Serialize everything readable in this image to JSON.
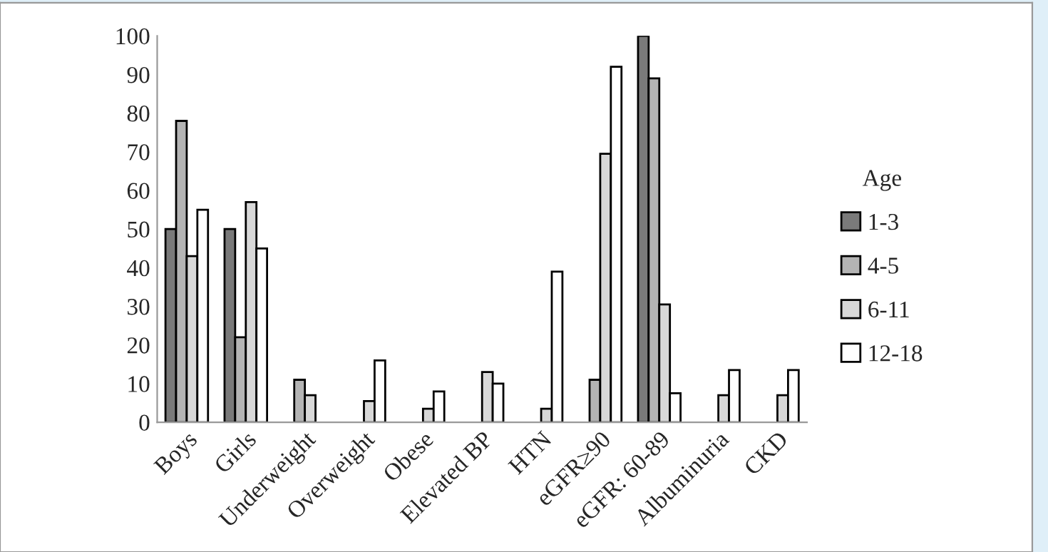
{
  "chart_data": {
    "type": "bar",
    "legend_title": "Age",
    "categories": [
      "Boys",
      "Girls",
      "Underweight",
      "Overweight",
      "Obese",
      "Elevated BP",
      "HTN",
      "eGFR≥90",
      "eGFR: 60-89",
      "Albuminuria",
      "CKD"
    ],
    "series": [
      {
        "name": "1-3",
        "color": "#7a7a7a",
        "values": [
          50,
          50,
          null,
          null,
          null,
          null,
          null,
          null,
          100,
          null,
          null
        ]
      },
      {
        "name": "4-5",
        "color": "#b4b4b4",
        "values": [
          78,
          22,
          11,
          null,
          null,
          null,
          null,
          11,
          89,
          null,
          null
        ]
      },
      {
        "name": "6-11",
        "color": "#d8d8d8",
        "values": [
          43,
          57,
          7,
          5.5,
          3.5,
          13,
          3.5,
          69.5,
          30.5,
          7,
          7
        ]
      },
      {
        "name": "12-18",
        "color": "#ffffff",
        "values": [
          55,
          45,
          null,
          16,
          8,
          10,
          39,
          92,
          7.5,
          13.5,
          13.5
        ]
      }
    ],
    "ylim": [
      0,
      100
    ],
    "yticks": [
      0,
      10,
      20,
      30,
      40,
      50,
      60,
      70,
      80,
      90,
      100
    ],
    "grid": false,
    "legend": "right"
  }
}
